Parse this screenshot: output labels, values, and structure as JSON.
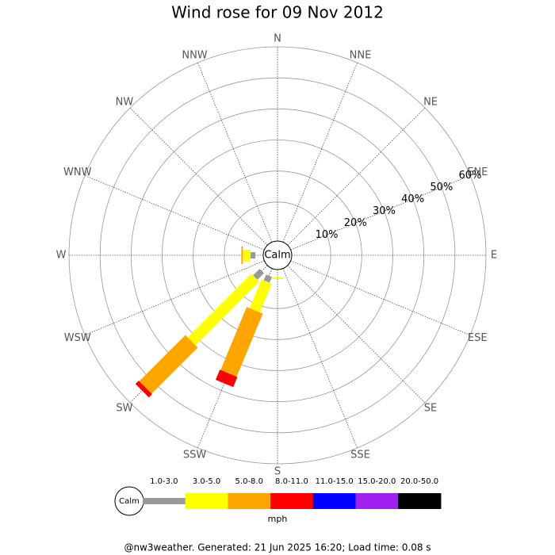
{
  "chart_data": {
    "type": "windrose",
    "title": "Wind rose for 09 Nov 2012",
    "center_label": "Calm",
    "categories": [
      "N",
      "NNE",
      "NE",
      "ENE",
      "E",
      "ESE",
      "SE",
      "SSE",
      "S",
      "SSW",
      "SW",
      "WSW",
      "W",
      "WNW",
      "NW",
      "NNW"
    ],
    "series": [
      {
        "name": "1.0-3.0",
        "color": "#999999",
        "values": [
          0,
          0,
          0,
          0,
          0,
          0,
          0,
          0,
          0,
          2,
          3,
          0,
          1.5,
          0,
          0,
          0
        ]
      },
      {
        "name": "3.0-5.0",
        "color": "#ffff00",
        "values": [
          0,
          0,
          0,
          0,
          0,
          0,
          0,
          0,
          0.5,
          10,
          29,
          0,
          2.5,
          0,
          0,
          0
        ]
      },
      {
        "name": "5.0-8.0",
        "color": "#ffa500",
        "values": [
          0,
          0,
          0,
          0,
          0,
          0,
          0,
          0,
          0,
          22,
          21,
          0,
          0.5,
          0,
          0,
          0
        ]
      },
      {
        "name": "8.0-11.0",
        "color": "#ff0000",
        "values": [
          0,
          0,
          0,
          0,
          0,
          0,
          0,
          0,
          0,
          3.5,
          1.5,
          0,
          0,
          0,
          0,
          0
        ]
      },
      {
        "name": "11.0-15.0",
        "color": "#0000ff",
        "values": [
          0,
          0,
          0,
          0,
          0,
          0,
          0,
          0,
          0,
          0,
          0,
          0,
          0,
          0,
          0,
          0
        ]
      },
      {
        "name": "15.0-20.0",
        "color": "#a020f0",
        "values": [
          0,
          0,
          0,
          0,
          0,
          0,
          0,
          0,
          0,
          0,
          0,
          0,
          0,
          0,
          0,
          0
        ]
      },
      {
        "name": "20.0-50.0",
        "color": "#000000",
        "values": [
          0,
          0,
          0,
          0,
          0,
          0,
          0,
          0,
          0,
          0,
          0,
          0,
          0,
          0,
          0,
          0
        ]
      }
    ],
    "rlim": [
      0,
      60
    ],
    "rticks": [
      {
        "value": 10,
        "label": "10%"
      },
      {
        "value": 20,
        "label": "20%"
      },
      {
        "value": 30,
        "label": "30%"
      },
      {
        "value": 40,
        "label": "40%"
      },
      {
        "value": 50,
        "label": "50%"
      },
      {
        "value": 60,
        "label": "60%"
      }
    ],
    "unit": "mph"
  },
  "footer": "@nw3weather. Generated: 21 Jun 2025 16:20; Load time: 0.08 s"
}
